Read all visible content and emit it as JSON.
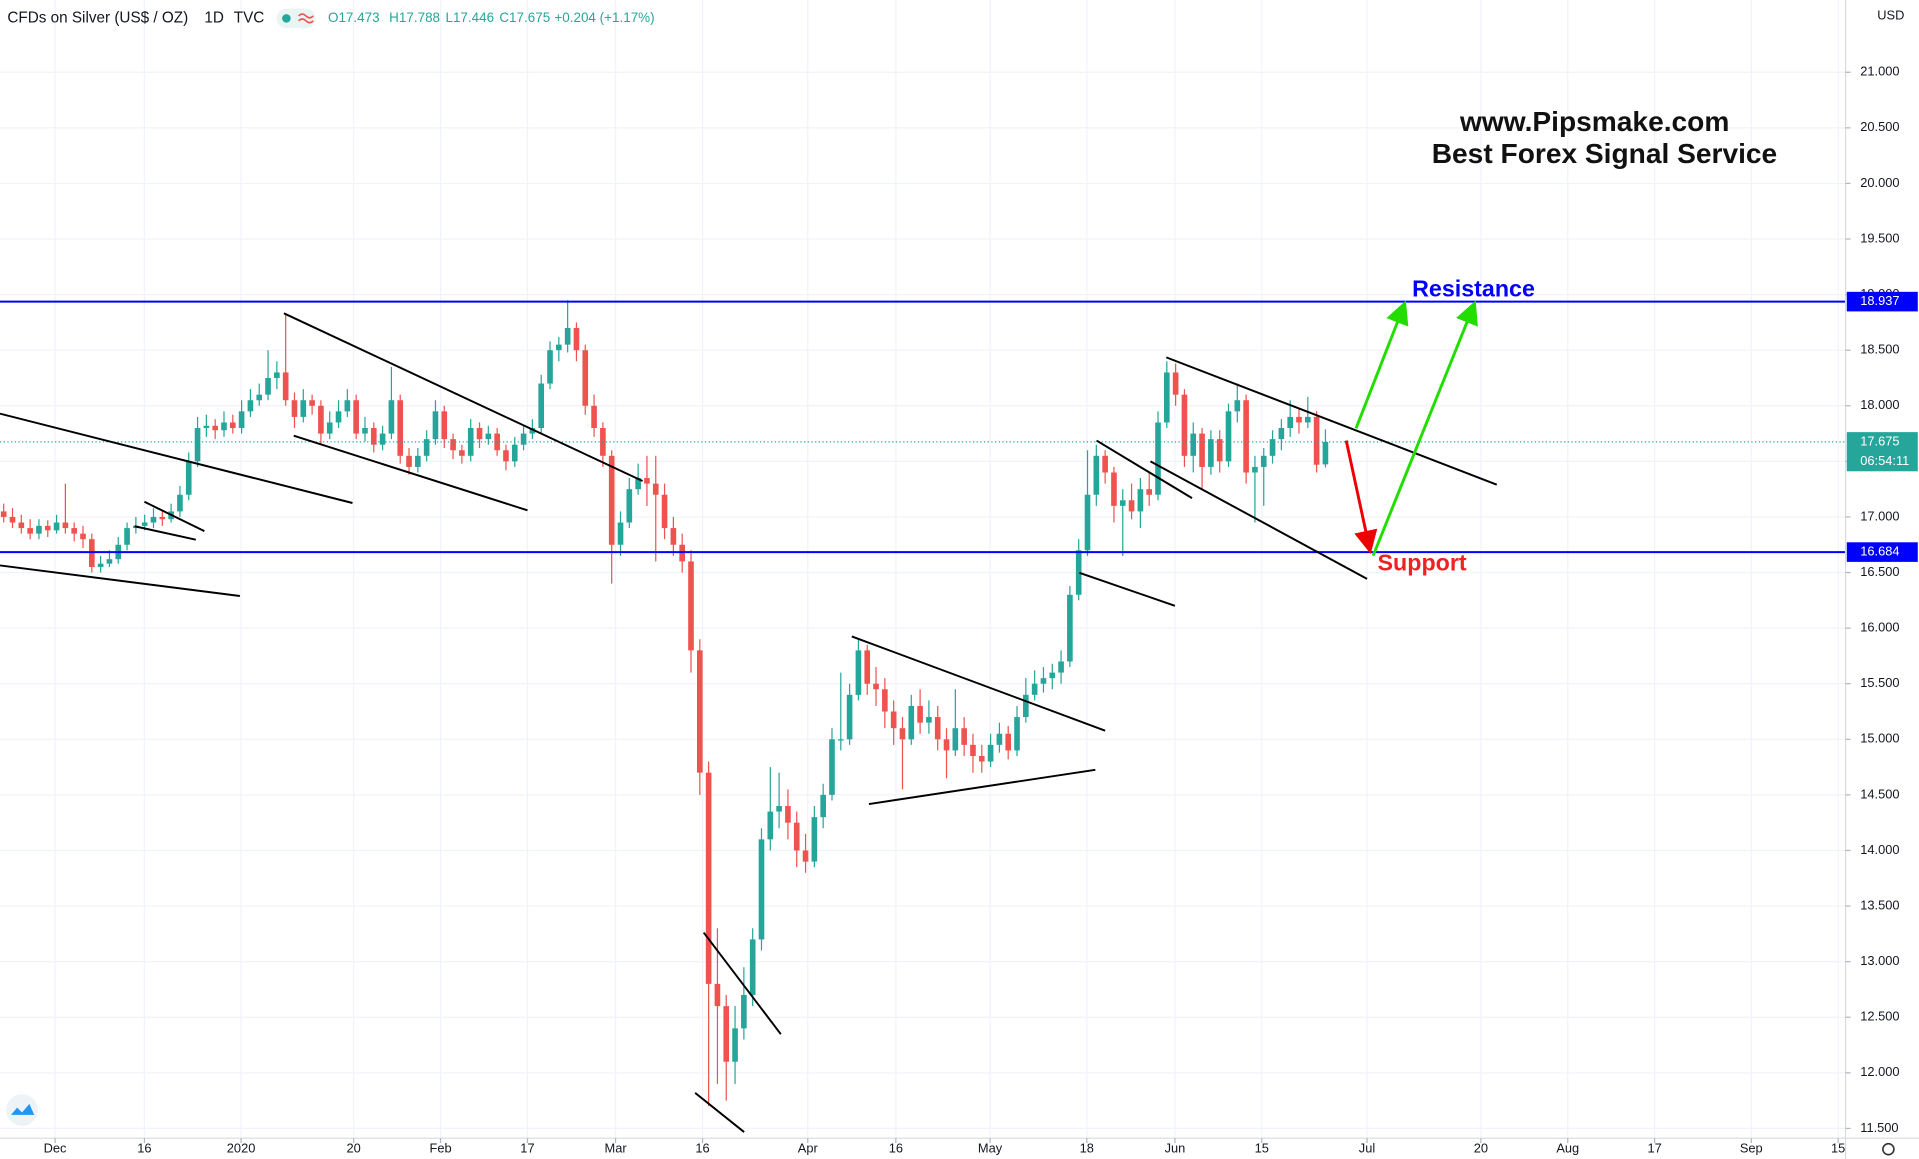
{
  "header": {
    "symbol": "CFDs on Silver (US$ / OZ)",
    "interval": "1D",
    "source": "TVC",
    "quote": [
      "O17.473",
      "H17.788",
      "L17.446",
      "C17.675",
      "+0.204 (+1.17%)"
    ],
    "countdown": "06:54:11",
    "currency": "USD"
  },
  "chart_data": {
    "type": "candlestick",
    "annotations": [
      "www.Pipsmake.com",
      "Best Forex Signal Service"
    ],
    "up_color": "#26a69a",
    "down_color": "#ef5350",
    "grid": true,
    "ylim": [
      11.412,
      21.65
    ],
    "yticks": [
      {
        "value": 11.5,
        "label": "11.500"
      },
      {
        "value": 12,
        "label": "12.000"
      },
      {
        "value": 12.5,
        "label": "12.500"
      },
      {
        "value": 13,
        "label": "13.000"
      },
      {
        "value": 13.5,
        "label": "13.500"
      },
      {
        "value": 14,
        "label": "14.000"
      },
      {
        "value": 14.5,
        "label": "14.500"
      },
      {
        "value": 15,
        "label": "15.000"
      },
      {
        "value": 15.5,
        "label": "15.500"
      },
      {
        "value": 16,
        "label": "16.000"
      },
      {
        "value": 16.5,
        "label": "16.500"
      },
      {
        "value": 17,
        "label": "17.000"
      },
      {
        "value": 17.5,
        "label": "17.500"
      },
      {
        "value": 18,
        "label": "18.000"
      },
      {
        "value": 18.5,
        "label": "18.500"
      },
      {
        "value": 19,
        "label": "19.000"
      },
      {
        "value": 19.5,
        "label": "19.500"
      },
      {
        "value": 20,
        "label": "20.000"
      },
      {
        "value": 20.5,
        "label": "20.500"
      },
      {
        "value": 21,
        "label": "21.000"
      }
    ],
    "xlim": [
      -0.42,
      209.03
    ],
    "xticks": [
      {
        "value": 5.83,
        "label": "Dec"
      },
      {
        "value": 15.97,
        "label": "16"
      },
      {
        "value": 26.94,
        "label": "2020"
      },
      {
        "value": 39.72,
        "label": "20"
      },
      {
        "value": 49.58,
        "label": "Feb"
      },
      {
        "value": 59.44,
        "label": "17"
      },
      {
        "value": 69.44,
        "label": "Mar"
      },
      {
        "value": 79.31,
        "label": "16"
      },
      {
        "value": 91.25,
        "label": "Apr"
      },
      {
        "value": 101.25,
        "label": "16"
      },
      {
        "value": 111.94,
        "label": "May"
      },
      {
        "value": 122.92,
        "label": "18"
      },
      {
        "value": 132.92,
        "label": "Jun"
      },
      {
        "value": 142.78,
        "label": "15"
      },
      {
        "value": 154.72,
        "label": "Jul"
      },
      {
        "value": 167.64,
        "label": "20"
      },
      {
        "value": 177.5,
        "label": "Aug"
      },
      {
        "value": 187.36,
        "label": "17"
      },
      {
        "value": 198.33,
        "label": "Sep"
      },
      {
        "value": 208.19,
        "label": "15"
      }
    ],
    "levels": [
      {
        "name": "Resistance",
        "value": 18.937,
        "color": "#0000ff"
      },
      {
        "name": "Support",
        "value": 16.684,
        "color": "#0000ff"
      }
    ],
    "last_price": 17.675,
    "ohlc": [
      [
        17.05,
        17.12,
        16.95,
        17.0
      ],
      [
        17.0,
        17.08,
        16.9,
        16.95
      ],
      [
        16.95,
        17.02,
        16.85,
        16.9
      ],
      [
        16.9,
        16.98,
        16.8,
        16.85
      ],
      [
        16.85,
        16.98,
        16.8,
        16.92
      ],
      [
        16.92,
        16.97,
        16.82,
        16.88
      ],
      [
        16.88,
        17.02,
        16.85,
        16.95
      ],
      [
        16.95,
        17.3,
        16.85,
        16.9
      ],
      [
        16.9,
        16.95,
        16.78,
        16.85
      ],
      [
        16.85,
        16.92,
        16.72,
        16.8
      ],
      [
        16.8,
        16.85,
        16.5,
        16.55
      ],
      [
        16.55,
        16.65,
        16.5,
        16.58
      ],
      [
        16.58,
        16.7,
        16.55,
        16.62
      ],
      [
        16.62,
        16.82,
        16.58,
        16.75
      ],
      [
        16.75,
        16.95,
        16.7,
        16.9
      ],
      [
        16.9,
        17.0,
        16.85,
        16.92
      ],
      [
        16.92,
        17.02,
        16.88,
        16.95
      ],
      [
        16.95,
        17.08,
        16.9,
        17.0
      ],
      [
        17.0,
        17.05,
        16.92,
        16.98
      ],
      [
        16.98,
        17.12,
        16.95,
        17.05
      ],
      [
        17.05,
        17.28,
        17.0,
        17.2
      ],
      [
        17.2,
        17.58,
        17.15,
        17.5
      ],
      [
        17.5,
        17.9,
        17.45,
        17.8
      ],
      [
        17.8,
        17.92,
        17.72,
        17.82
      ],
      [
        17.82,
        17.88,
        17.7,
        17.78
      ],
      [
        17.78,
        17.95,
        17.72,
        17.85
      ],
      [
        17.85,
        17.92,
        17.75,
        17.8
      ],
      [
        17.8,
        18.05,
        17.75,
        17.95
      ],
      [
        17.95,
        18.15,
        17.9,
        18.05
      ],
      [
        18.05,
        18.2,
        18.0,
        18.1
      ],
      [
        18.1,
        18.5,
        18.05,
        18.25
      ],
      [
        18.25,
        18.4,
        18.15,
        18.3
      ],
      [
        18.3,
        18.82,
        18.0,
        18.05
      ],
      [
        18.05,
        18.12,
        17.8,
        17.9
      ],
      [
        17.9,
        18.15,
        17.85,
        18.05
      ],
      [
        18.05,
        18.1,
        17.92,
        18.0
      ],
      [
        18.0,
        18.05,
        17.65,
        17.75
      ],
      [
        17.75,
        17.95,
        17.7,
        17.85
      ],
      [
        17.85,
        18.05,
        17.8,
        17.95
      ],
      [
        17.95,
        18.15,
        17.9,
        18.05
      ],
      [
        18.05,
        18.1,
        17.7,
        17.75
      ],
      [
        17.75,
        17.9,
        17.68,
        17.8
      ],
      [
        17.8,
        17.85,
        17.58,
        17.65
      ],
      [
        17.65,
        17.82,
        17.6,
        17.75
      ],
      [
        17.75,
        18.35,
        17.7,
        18.05
      ],
      [
        18.05,
        18.1,
        17.48,
        17.55
      ],
      [
        17.55,
        17.62,
        17.38,
        17.45
      ],
      [
        17.45,
        17.62,
        17.4,
        17.55
      ],
      [
        17.55,
        17.78,
        17.5,
        17.7
      ],
      [
        17.7,
        18.05,
        17.65,
        17.95
      ],
      [
        17.95,
        18.0,
        17.62,
        17.7
      ],
      [
        17.7,
        17.75,
        17.52,
        17.6
      ],
      [
        17.6,
        17.65,
        17.48,
        17.55
      ],
      [
        17.55,
        17.88,
        17.5,
        17.8
      ],
      [
        17.8,
        17.85,
        17.62,
        17.7
      ],
      [
        17.7,
        17.82,
        17.65,
        17.75
      ],
      [
        17.75,
        17.8,
        17.55,
        17.6
      ],
      [
        17.6,
        17.65,
        17.42,
        17.5
      ],
      [
        17.5,
        17.72,
        17.45,
        17.65
      ],
      [
        17.65,
        17.82,
        17.6,
        17.75
      ],
      [
        17.75,
        17.88,
        17.7,
        17.8
      ],
      [
        17.8,
        18.28,
        17.75,
        18.2
      ],
      [
        18.2,
        18.58,
        18.15,
        18.5
      ],
      [
        18.5,
        18.62,
        18.4,
        18.55
      ],
      [
        18.55,
        18.95,
        18.48,
        18.7
      ],
      [
        18.7,
        18.75,
        18.4,
        18.5
      ],
      [
        18.5,
        18.55,
        17.92,
        18.0
      ],
      [
        18.0,
        18.1,
        17.72,
        17.8
      ],
      [
        17.8,
        17.85,
        17.45,
        17.55
      ],
      [
        17.55,
        17.6,
        16.4,
        16.75
      ],
      [
        16.75,
        17.05,
        16.65,
        16.95
      ],
      [
        16.95,
        17.35,
        16.9,
        17.25
      ],
      [
        17.25,
        17.48,
        17.2,
        17.35
      ],
      [
        17.35,
        17.55,
        17.1,
        17.3
      ],
      [
        17.3,
        17.55,
        16.6,
        17.2
      ],
      [
        17.2,
        17.3,
        16.8,
        16.9
      ],
      [
        16.9,
        17.0,
        16.65,
        16.75
      ],
      [
        16.75,
        16.85,
        16.5,
        16.6
      ],
      [
        16.6,
        16.7,
        15.6,
        15.8
      ],
      [
        15.8,
        15.9,
        14.5,
        14.7
      ],
      [
        14.7,
        14.8,
        11.7,
        12.8
      ],
      [
        12.8,
        13.3,
        11.9,
        12.6
      ],
      [
        12.6,
        12.7,
        11.75,
        12.1
      ],
      [
        12.1,
        12.6,
        11.9,
        12.4
      ],
      [
        12.4,
        12.95,
        12.3,
        12.7
      ],
      [
        12.7,
        13.3,
        12.6,
        13.2
      ],
      [
        13.2,
        14.2,
        13.1,
        14.1
      ],
      [
        14.1,
        14.75,
        14.0,
        14.35
      ],
      [
        14.35,
        14.7,
        14.2,
        14.4
      ],
      [
        14.4,
        14.55,
        14.1,
        14.25
      ],
      [
        14.25,
        14.35,
        13.85,
        14.0
      ],
      [
        14.0,
        14.15,
        13.8,
        13.9
      ],
      [
        13.9,
        14.4,
        13.85,
        14.3
      ],
      [
        14.3,
        14.6,
        14.2,
        14.5
      ],
      [
        14.5,
        15.1,
        14.45,
        15.0
      ],
      [
        15.0,
        15.6,
        14.9,
        15.0
      ],
      [
        15.0,
        15.5,
        14.95,
        15.4
      ],
      [
        15.4,
        15.9,
        15.35,
        15.8
      ],
      [
        15.8,
        15.85,
        15.4,
        15.5
      ],
      [
        15.5,
        15.65,
        15.3,
        15.45
      ],
      [
        15.45,
        15.55,
        15.1,
        15.25
      ],
      [
        15.25,
        15.35,
        14.95,
        15.1
      ],
      [
        15.1,
        15.2,
        14.55,
        15.0
      ],
      [
        15.0,
        15.4,
        14.95,
        15.3
      ],
      [
        15.3,
        15.45,
        15.05,
        15.15
      ],
      [
        15.15,
        15.35,
        15.05,
        15.2
      ],
      [
        15.2,
        15.3,
        14.9,
        15.0
      ],
      [
        15.0,
        15.1,
        14.65,
        14.9
      ],
      [
        14.9,
        15.45,
        14.85,
        15.1
      ],
      [
        15.1,
        15.2,
        14.85,
        14.95
      ],
      [
        14.95,
        15.05,
        14.7,
        14.85
      ],
      [
        14.85,
        14.95,
        14.7,
        14.8
      ],
      [
        14.8,
        15.05,
        14.75,
        14.95
      ],
      [
        14.95,
        15.15,
        14.88,
        15.05
      ],
      [
        15.05,
        15.12,
        14.82,
        14.9
      ],
      [
        14.9,
        15.3,
        14.85,
        15.2
      ],
      [
        15.2,
        15.55,
        15.15,
        15.4
      ],
      [
        15.4,
        15.62,
        15.35,
        15.5
      ],
      [
        15.5,
        15.65,
        15.42,
        15.55
      ],
      [
        15.55,
        15.68,
        15.45,
        15.6
      ],
      [
        15.6,
        15.8,
        15.5,
        15.7
      ],
      [
        15.7,
        16.38,
        15.65,
        16.3
      ],
      [
        16.3,
        16.8,
        16.25,
        16.7
      ],
      [
        16.7,
        17.6,
        16.65,
        17.2
      ],
      [
        17.2,
        17.65,
        17.1,
        17.55
      ],
      [
        17.55,
        17.6,
        17.3,
        17.4
      ],
      [
        17.4,
        17.45,
        16.95,
        17.1
      ],
      [
        17.1,
        17.25,
        16.65,
        17.15
      ],
      [
        17.15,
        17.3,
        16.98,
        17.05
      ],
      [
        17.05,
        17.35,
        16.9,
        17.25
      ],
      [
        17.25,
        17.4,
        17.1,
        17.2
      ],
      [
        17.2,
        17.95,
        17.15,
        17.85
      ],
      [
        17.85,
        18.4,
        17.8,
        18.3
      ],
      [
        18.3,
        18.38,
        18.0,
        18.1
      ],
      [
        18.1,
        18.15,
        17.45,
        17.55
      ],
      [
        17.55,
        17.85,
        17.4,
        17.75
      ],
      [
        17.75,
        17.8,
        17.25,
        17.45
      ],
      [
        17.45,
        17.78,
        17.38,
        17.7
      ],
      [
        17.7,
        17.78,
        17.4,
        17.5
      ],
      [
        17.5,
        18.02,
        17.45,
        17.95
      ],
      [
        17.95,
        18.2,
        17.85,
        18.05
      ],
      [
        18.05,
        18.1,
        17.3,
        17.4
      ],
      [
        17.4,
        17.55,
        16.95,
        17.45
      ],
      [
        17.45,
        17.62,
        17.1,
        17.55
      ],
      [
        17.55,
        17.78,
        17.48,
        17.7
      ],
      [
        17.7,
        17.88,
        17.6,
        17.8
      ],
      [
        17.8,
        18.05,
        17.72,
        17.9
      ],
      [
        17.9,
        17.98,
        17.75,
        17.85
      ],
      [
        17.85,
        18.08,
        17.8,
        17.9
      ],
      [
        17.9,
        17.95,
        17.4,
        17.47
      ],
      [
        17.473,
        17.788,
        17.446,
        17.675
      ]
    ]
  }
}
